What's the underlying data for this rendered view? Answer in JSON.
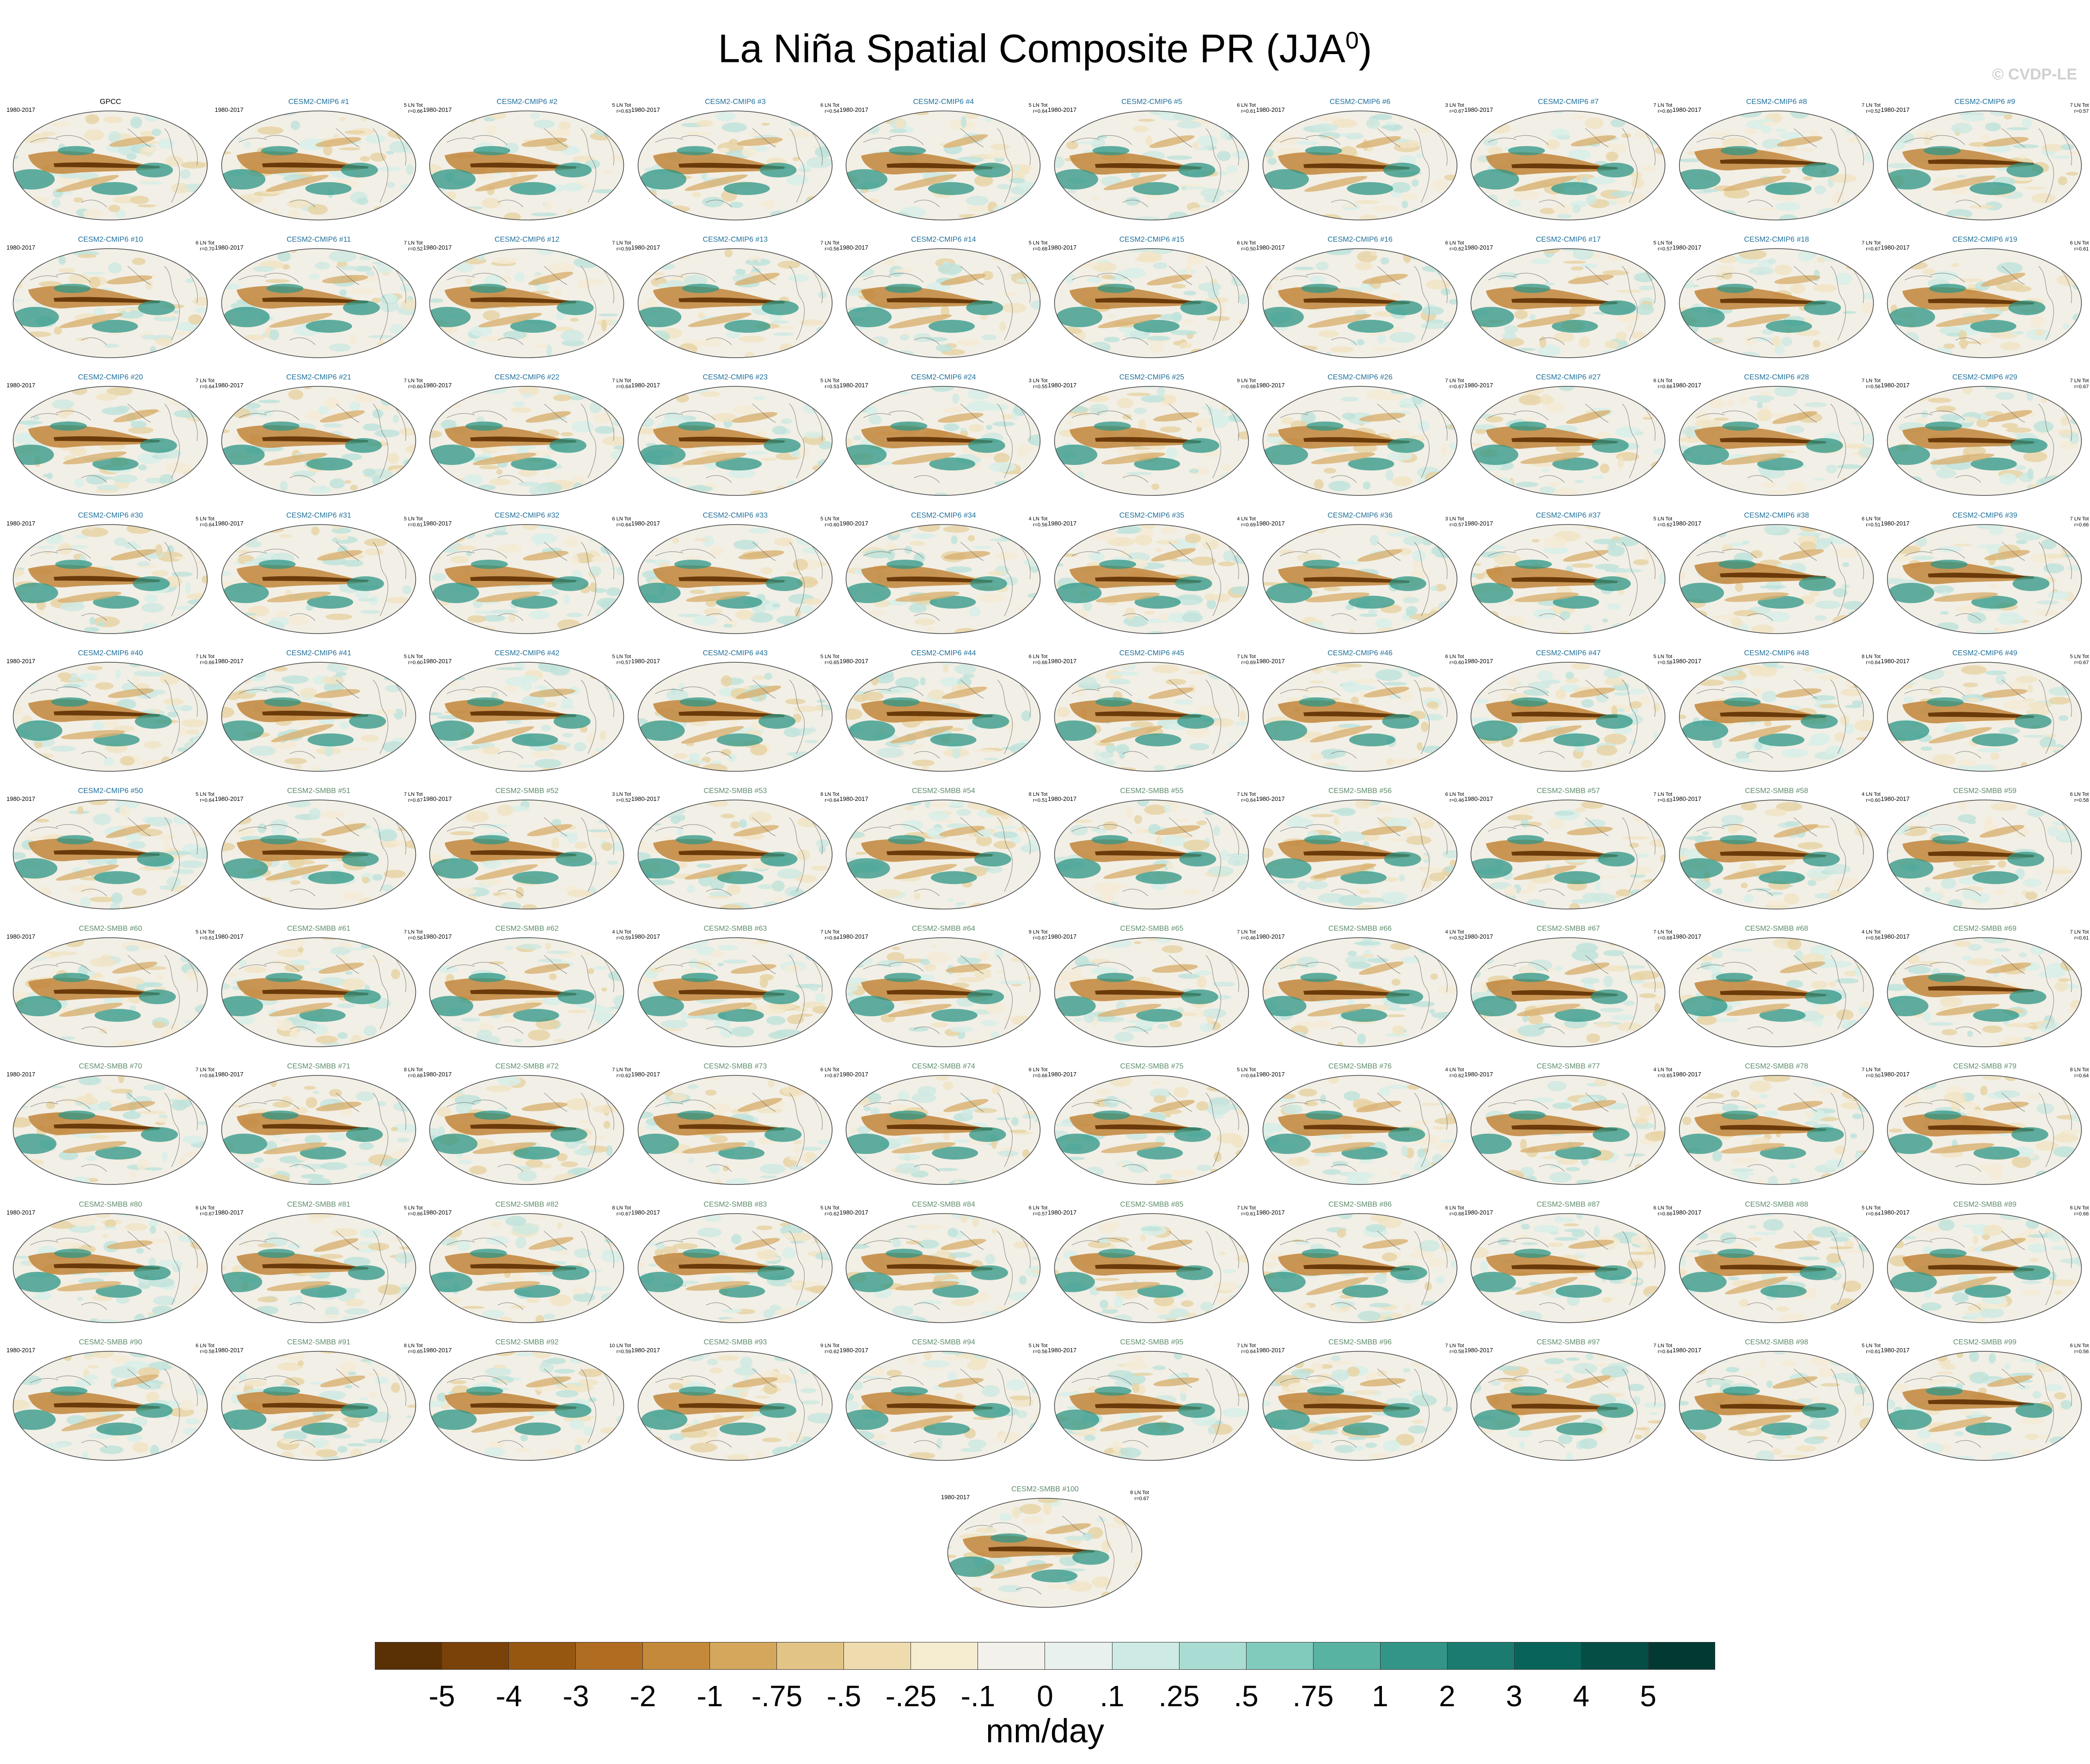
{
  "title": "La Niña Spatial Composite PR (JJA",
  "title_sup": "0",
  "title_close": ")",
  "watermark": "© CVDP-LE",
  "chart_data": {
    "type": "map-panel-grid",
    "period": "1980-2017",
    "obs_panel": {
      "name": "GPCC"
    },
    "model_panels": [
      {
        "name": "CESM2-CMIP6 #1",
        "events": "5 LN Tot",
        "r": "r=0.66"
      },
      {
        "name": "CESM2-CMIP6 #2",
        "events": "5 LN Tot",
        "r": "r=0.63"
      },
      {
        "name": "CESM2-CMIP6 #3",
        "events": "6 LN Tot",
        "r": "r=0.54"
      },
      {
        "name": "CESM2-CMIP6 #4",
        "events": "5 LN Tot",
        "r": "r=0.64"
      },
      {
        "name": "CESM2-CMIP6 #5",
        "events": "6 LN Tot",
        "r": "r=0.61"
      },
      {
        "name": "CESM2-CMIP6 #6",
        "events": "3 LN Tot",
        "r": "r=0.67"
      },
      {
        "name": "CESM2-CMIP6 #7",
        "events": "7 LN Tot",
        "r": "r=0.60"
      },
      {
        "name": "CESM2-CMIP6 #8",
        "events": "7 LN Tot",
        "r": "r=0.52"
      },
      {
        "name": "CESM2-CMIP6 #9",
        "events": "7 LN Tot",
        "r": "r=0.57"
      },
      {
        "name": "CESM2-CMIP6 #10",
        "events": "6 LN Tot",
        "r": "r=0.70"
      },
      {
        "name": "CESM2-CMIP6 #11",
        "events": "7 LN Tot",
        "r": "r=0.52"
      },
      {
        "name": "CESM2-CMIP6 #12",
        "events": "7 LN Tot",
        "r": "r=0.59"
      },
      {
        "name": "CESM2-CMIP6 #13",
        "events": "7 LN Tot",
        "r": "r=0.56"
      },
      {
        "name": "CESM2-CMIP6 #14",
        "events": "5 LN Tot",
        "r": "r=0.68"
      },
      {
        "name": "CESM2-CMIP6 #15",
        "events": "6 LN Tot",
        "r": "r=0.50"
      },
      {
        "name": "CESM2-CMIP6 #16",
        "events": "6 LN Tot",
        "r": "r=0.62"
      },
      {
        "name": "CESM2-CMIP6 #17",
        "events": "5 LN Tot",
        "r": "r=0.57"
      },
      {
        "name": "CESM2-CMIP6 #18",
        "events": "7 LN Tot",
        "r": "r=0.67"
      },
      {
        "name": "CESM2-CMIP6 #19",
        "events": "6 LN Tot",
        "r": "r=0.61"
      },
      {
        "name": "CESM2-CMIP6 #20",
        "events": "7 LN Tot",
        "r": "r=0.64"
      },
      {
        "name": "CESM2-CMIP6 #21",
        "events": "7 LN Tot",
        "r": "r=0.60"
      },
      {
        "name": "CESM2-CMIP6 #22",
        "events": "7 LN Tot",
        "r": "r=0.64"
      },
      {
        "name": "CESM2-CMIP6 #23",
        "events": "5 LN Tot",
        "r": "r=0.53"
      },
      {
        "name": "CESM2-CMIP6 #24",
        "events": "3 LN Tot",
        "r": "r=0.55"
      },
      {
        "name": "CESM2-CMIP6 #25",
        "events": "9 LN Tot",
        "r": "r=0.68"
      },
      {
        "name": "CESM2-CMIP6 #26",
        "events": "7 LN Tot",
        "r": "r=0.67"
      },
      {
        "name": "CESM2-CMIP6 #27",
        "events": "6 LN Tot",
        "r": "r=0.66"
      },
      {
        "name": "CESM2-CMIP6 #28",
        "events": "7 LN Tot",
        "r": "r=0.56"
      },
      {
        "name": "CESM2-CMIP6 #29",
        "events": "7 LN Tot",
        "r": "r=0.67"
      },
      {
        "name": "CESM2-CMIP6 #30",
        "events": "5 LN Tot",
        "r": "r=0.64"
      },
      {
        "name": "CESM2-CMIP6 #31",
        "events": "5 LN Tot",
        "r": "r=0.61"
      },
      {
        "name": "CESM2-CMIP6 #32",
        "events": "6 LN Tot",
        "r": "r=0.64"
      },
      {
        "name": "CESM2-CMIP6 #33",
        "events": "5 LN Tot",
        "r": "r=0.60"
      },
      {
        "name": "CESM2-CMIP6 #34",
        "events": "4 LN Tot",
        "r": "r=0.56"
      },
      {
        "name": "CESM2-CMIP6 #35",
        "events": "4 LN Tot",
        "r": "r=0.69"
      },
      {
        "name": "CESM2-CMIP6 #36",
        "events": "3 LN Tot",
        "r": "r=0.57"
      },
      {
        "name": "CESM2-CMIP6 #37",
        "events": "5 LN Tot",
        "r": "r=0.62"
      },
      {
        "name": "CESM2-CMIP6 #38",
        "events": "6 LN Tot",
        "r": "r=0.51"
      },
      {
        "name": "CESM2-CMIP6 #39",
        "events": "7 LN Tot",
        "r": "r=0.66"
      },
      {
        "name": "CESM2-CMIP6 #40",
        "events": "7 LN Tot",
        "r": "r=0.66"
      },
      {
        "name": "CESM2-CMIP6 #41",
        "events": "5 LN Tot",
        "r": "r=0.60"
      },
      {
        "name": "CESM2-CMIP6 #42",
        "events": "5 LN Tot",
        "r": "r=0.57"
      },
      {
        "name": "CESM2-CMIP6 #43",
        "events": "5 LN Tot",
        "r": "r=0.65"
      },
      {
        "name": "CESM2-CMIP6 #44",
        "events": "6 LN Tot",
        "r": "r=0.66"
      },
      {
        "name": "CESM2-CMIP6 #45",
        "events": "7 LN Tot",
        "r": "r=0.69"
      },
      {
        "name": "CESM2-CMIP6 #46",
        "events": "6 LN Tot",
        "r": "r=0.60"
      },
      {
        "name": "CESM2-CMIP6 #47",
        "events": "5 LN Tot",
        "r": "r=0.58"
      },
      {
        "name": "CESM2-CMIP6 #48",
        "events": "8 LN Tot",
        "r": "r=0.64"
      },
      {
        "name": "CESM2-CMIP6 #49",
        "events": "5 LN Tot",
        "r": "r=0.67"
      },
      {
        "name": "CESM2-CMIP6 #50",
        "events": "5 LN Tot",
        "r": "r=0.64"
      },
      {
        "name": "CESM2-SMBB #51",
        "events": "7 LN Tot",
        "r": "r=0.67"
      },
      {
        "name": "CESM2-SMBB #52",
        "events": "3 LN Tot",
        "r": "r=0.52"
      },
      {
        "name": "CESM2-SMBB #53",
        "events": "8 LN Tot",
        "r": "r=0.64"
      },
      {
        "name": "CESM2-SMBB #54",
        "events": "8 LN Tot",
        "r": "r=0.51"
      },
      {
        "name": "CESM2-SMBB #55",
        "events": "7 LN Tot",
        "r": "r=0.64"
      },
      {
        "name": "CESM2-SMBB #56",
        "events": "6 LN Tot",
        "r": "r=0.46"
      },
      {
        "name": "CESM2-SMBB #57",
        "events": "7 LN Tot",
        "r": "r=0.63"
      },
      {
        "name": "CESM2-SMBB #58",
        "events": "4 LN Tot",
        "r": "r=0.60"
      },
      {
        "name": "CESM2-SMBB #59",
        "events": "6 LN Tot",
        "r": "r=0.58"
      },
      {
        "name": "CESM2-SMBB #60",
        "events": "5 LN Tot",
        "r": "r=0.61"
      },
      {
        "name": "CESM2-SMBB #61",
        "events": "7 LN Tot",
        "r": "r=0.58"
      },
      {
        "name": "CESM2-SMBB #62",
        "events": "4 LN Tot",
        "r": "r=0.59"
      },
      {
        "name": "CESM2-SMBB #63",
        "events": "7 LN Tot",
        "r": "r=0.64"
      },
      {
        "name": "CESM2-SMBB #64",
        "events": "9 LN Tot",
        "r": "r=0.67"
      },
      {
        "name": "CESM2-SMBB #65",
        "events": "7 LN Tot",
        "r": "r=0.46"
      },
      {
        "name": "CESM2-SMBB #66",
        "events": "4 LN Tot",
        "r": "r=0.52"
      },
      {
        "name": "CESM2-SMBB #67",
        "events": "7 LN Tot",
        "r": "r=0.68"
      },
      {
        "name": "CESM2-SMBB #68",
        "events": "4 LN Tot",
        "r": "r=0.56"
      },
      {
        "name": "CESM2-SMBB #69",
        "events": "7 LN Tot",
        "r": "r=0.61"
      },
      {
        "name": "CESM2-SMBB #70",
        "events": "7 LN Tot",
        "r": "r=0.66"
      },
      {
        "name": "CESM2-SMBB #71",
        "events": "8 LN Tot",
        "r": "r=0.68"
      },
      {
        "name": "CESM2-SMBB #72",
        "events": "7 LN Tot",
        "r": "r=0.62"
      },
      {
        "name": "CESM2-SMBB #73",
        "events": "6 LN Tot",
        "r": "r=0.67"
      },
      {
        "name": "CESM2-SMBB #74",
        "events": "6 LN Tot",
        "r": "r=0.66"
      },
      {
        "name": "CESM2-SMBB #75",
        "events": "5 LN Tot",
        "r": "r=0.64"
      },
      {
        "name": "CESM2-SMBB #76",
        "events": "4 LN Tot",
        "r": "r=0.62"
      },
      {
        "name": "CESM2-SMBB #77",
        "events": "4 LN Tot",
        "r": "r=0.65"
      },
      {
        "name": "CESM2-SMBB #78",
        "events": "7 LN Tot",
        "r": "r=0.50"
      },
      {
        "name": "CESM2-SMBB #79",
        "events": "8 LN Tot",
        "r": "r=0.64"
      },
      {
        "name": "CESM2-SMBB #80",
        "events": "6 LN Tot",
        "r": "r=0.67"
      },
      {
        "name": "CESM2-SMBB #81",
        "events": "5 LN Tot",
        "r": "r=0.66"
      },
      {
        "name": "CESM2-SMBB #82",
        "events": "8 LN Tot",
        "r": "r=0.67"
      },
      {
        "name": "CESM2-SMBB #83",
        "events": "5 LN Tot",
        "r": "r=0.62"
      },
      {
        "name": "CESM2-SMBB #84",
        "events": "6 LN Tot",
        "r": "r=0.57"
      },
      {
        "name": "CESM2-SMBB #85",
        "events": "7 LN Tot",
        "r": "r=0.61"
      },
      {
        "name": "CESM2-SMBB #86",
        "events": "6 LN Tot",
        "r": "r=0.68"
      },
      {
        "name": "CESM2-SMBB #87",
        "events": "6 LN Tot",
        "r": "r=0.66"
      },
      {
        "name": "CESM2-SMBB #88",
        "events": "5 LN Tot",
        "r": "r=0.64"
      },
      {
        "name": "CESM2-SMBB #89",
        "events": "6 LN Tot",
        "r": "r=0.66"
      },
      {
        "name": "CESM2-SMBB #90",
        "events": "6 LN Tot",
        "r": "r=0.58"
      },
      {
        "name": "CESM2-SMBB #91",
        "events": "8 LN Tot",
        "r": "r=0.65"
      },
      {
        "name": "CESM2-SMBB #92",
        "events": "10 LN Tot",
        "r": "r=0.59"
      },
      {
        "name": "CESM2-SMBB #93",
        "events": "9 LN Tot",
        "r": "r=0.62"
      },
      {
        "name": "CESM2-SMBB #94",
        "events": "5 LN Tot",
        "r": "r=0.56"
      },
      {
        "name": "CESM2-SMBB #95",
        "events": "7 LN Tot",
        "r": "r=0.64"
      },
      {
        "name": "CESM2-SMBB #96",
        "events": "7 LN Tot",
        "r": "r=0.58"
      },
      {
        "name": "CESM2-SMBB #97",
        "events": "7 LN Tot",
        "r": "r=0.64"
      },
      {
        "name": "CESM2-SMBB #98",
        "events": "5 LN Tot",
        "r": "r=0.61"
      },
      {
        "name": "CESM2-SMBB #99",
        "events": "6 LN Tot",
        "r": "r=0.56"
      },
      {
        "name": "CESM2-SMBB #100",
        "events": "8 LN Tot",
        "r": "r=0.67"
      }
    ],
    "colorbar": {
      "labels": [
        "-5",
        "-4",
        "-3",
        "-2",
        "-1",
        "-.75",
        "-.5",
        "-.25",
        "-.1",
        "0",
        ".1",
        ".25",
        ".5",
        ".75",
        "1",
        "2",
        "3",
        "4",
        "5"
      ],
      "colors": [
        "#5a3005",
        "#7a4108",
        "#965710",
        "#b06d22",
        "#c48a3a",
        "#d4a75c",
        "#e2c486",
        "#efdcae",
        "#f6ecd0",
        "#f3f1ec",
        "#e8f1ee",
        "#cdebe4",
        "#a9ddd3",
        "#81cbbd",
        "#58b3a3",
        "#339588",
        "#1b7b70",
        "#08645a",
        "#044e45",
        "#023a33"
      ],
      "units": "mm/day"
    },
    "cmip_title_color": "#1f6f9a",
    "smbb_title_color": "#5e8c6a"
  }
}
